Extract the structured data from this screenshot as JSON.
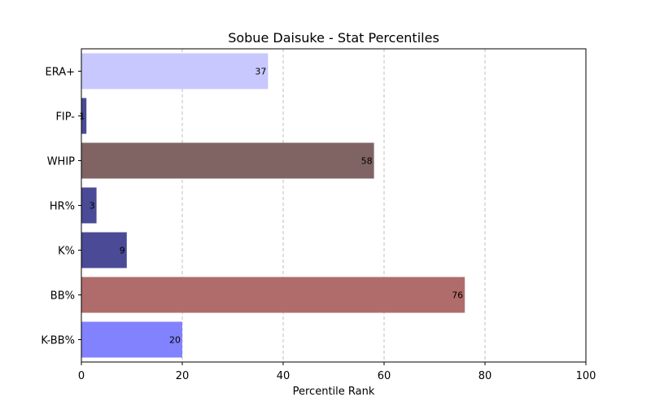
{
  "chart_data": {
    "type": "bar",
    "orientation": "horizontal",
    "title": "Sobue Daisuke - Stat Percentiles",
    "xlabel": "Percentile Rank",
    "ylabel": "",
    "xlim": [
      0,
      100
    ],
    "xticks": [
      0,
      20,
      40,
      60,
      80,
      100
    ],
    "grid": "x-dashed",
    "legend": "none",
    "categories": [
      "ERA+",
      "FIP-",
      "WHIP",
      "HR%",
      "K%",
      "BB%",
      "K-BB%"
    ],
    "values": [
      37,
      1,
      58,
      3,
      9,
      76,
      20
    ],
    "value_labels": [
      "37",
      "1",
      "58",
      "3",
      "9",
      "76",
      "20"
    ],
    "bar_colors": [
      "#c8c8ff",
      "#4a4a96",
      "#806464",
      "#4a4a96",
      "#4a4a96",
      "#b06c6a",
      "#8282ff"
    ]
  }
}
